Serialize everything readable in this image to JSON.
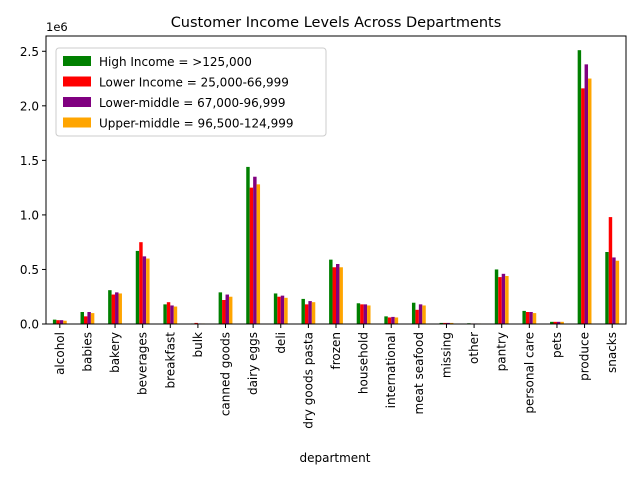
{
  "chart_data": {
    "type": "bar",
    "title": "Customer Income Levels Across Departments",
    "xlabel": "department",
    "ylabel": "",
    "y_offset_label": "1e6",
    "ylim": [
      0,
      2.64
    ],
    "yticks": [
      0.0,
      0.5,
      1.0,
      1.5,
      2.0,
      2.5
    ],
    "ytick_labels": [
      "0.0",
      "0.5",
      "1.0",
      "1.5",
      "2.0",
      "2.5"
    ],
    "legend_position": "upper-left",
    "categories": [
      "alcohol",
      "babies",
      "bakery",
      "beverages",
      "breakfast",
      "bulk",
      "canned goods",
      "dairy eggs",
      "deli",
      "dry goods pasta",
      "frozen",
      "household",
      "international",
      "meat seafood",
      "missing",
      "other",
      "pantry",
      "personal care",
      "pets",
      "produce",
      "snacks"
    ],
    "series": [
      {
        "name": "High Income = >125,000",
        "color": "#008000",
        "values": [
          0.04,
          0.11,
          0.31,
          0.67,
          0.18,
          0.005,
          0.29,
          1.44,
          0.28,
          0.23,
          0.59,
          0.19,
          0.07,
          0.195,
          0.01,
          0.007,
          0.5,
          0.12,
          0.02,
          2.51,
          0.66
        ]
      },
      {
        "name": "Lower Income = 25,000-66,999",
        "color": "#ff0000",
        "values": [
          0.035,
          0.07,
          0.27,
          0.75,
          0.2,
          0.01,
          0.22,
          1.25,
          0.25,
          0.18,
          0.52,
          0.18,
          0.06,
          0.13,
          0.01,
          0.005,
          0.43,
          0.11,
          0.02,
          2.16,
          0.98
        ]
      },
      {
        "name": "Lower-middle = 67,000-96,999",
        "color": "#800080",
        "values": [
          0.035,
          0.11,
          0.29,
          0.62,
          0.17,
          0.005,
          0.27,
          1.35,
          0.26,
          0.21,
          0.55,
          0.18,
          0.065,
          0.18,
          0.01,
          0.005,
          0.46,
          0.11,
          0.02,
          2.38,
          0.61
        ]
      },
      {
        "name": "Upper-middle = 96,500-124,999",
        "color": "#ffa500",
        "values": [
          0.03,
          0.1,
          0.28,
          0.6,
          0.16,
          0.005,
          0.25,
          1.28,
          0.24,
          0.2,
          0.52,
          0.17,
          0.06,
          0.17,
          0.01,
          0.005,
          0.44,
          0.1,
          0.02,
          2.25,
          0.58
        ]
      }
    ]
  }
}
